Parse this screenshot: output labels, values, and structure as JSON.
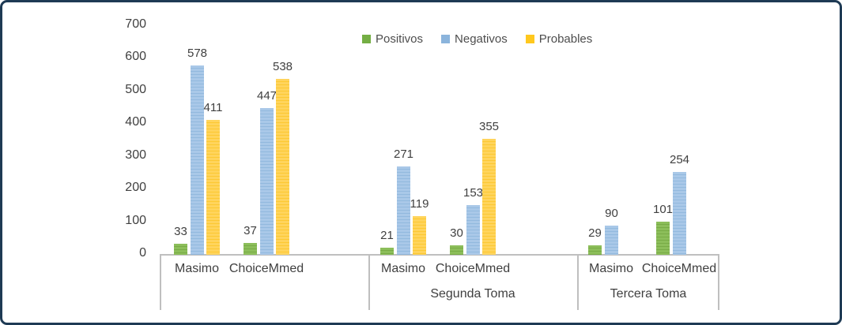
{
  "chart_data": {
    "type": "bar",
    "title": "",
    "ylim": [
      0,
      700
    ],
    "yticks": [
      0,
      100,
      200,
      300,
      400,
      500,
      600,
      700
    ],
    "grid": false,
    "legend_position": "top",
    "series": [
      {
        "name": "Positivos",
        "color": "#74ae44",
        "bar_base": "#8cbe5a",
        "bar_stripe": "#78ab46"
      },
      {
        "name": "Negativos",
        "color": "#8bb4dc",
        "bar_base": "#a9c8e8",
        "bar_stripe": "#92b9de"
      },
      {
        "name": "Probables",
        "color": "#ffc81e",
        "bar_base": "#ffd45c",
        "bar_stripe": "#fcc832"
      }
    ],
    "groups": [
      {
        "label": "",
        "categories": [
          {
            "label": "Masimo",
            "values": [
              33,
              578,
              411
            ]
          },
          {
            "label": "ChoiceMmed",
            "values": [
              37,
              447,
              538
            ]
          }
        ]
      },
      {
        "label": "Segunda Toma",
        "categories": [
          {
            "label": "Masimo",
            "values": [
              21,
              271,
              119
            ]
          },
          {
            "label": "ChoiceMmed",
            "values": [
              30,
              153,
              355
            ]
          }
        ]
      },
      {
        "label": "Tercera Toma",
        "categories": [
          {
            "label": "Masimo",
            "values": [
              29,
              90,
              null
            ]
          },
          {
            "label": "ChoiceMmed",
            "values": [
              101,
              254,
              null
            ]
          }
        ]
      }
    ]
  },
  "colors": {
    "frame_border": "#1e3a54",
    "axis_box_border": "#bfbfbf",
    "text": "#404040",
    "value_label": "#3f3f3f",
    "background": "#ffffff"
  }
}
